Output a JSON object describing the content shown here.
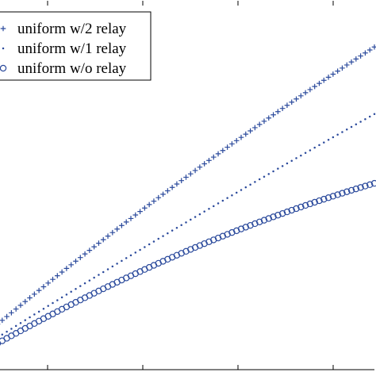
{
  "chart_data": {
    "type": "scatter",
    "title": "",
    "xlabel": "",
    "ylabel": "",
    "grid": false,
    "legend_position": "top-left",
    "marker_color": "#2b4a9c",
    "x": {
      "start": 0,
      "end": 82,
      "step": 1
    },
    "xlim": [
      0,
      82
    ],
    "ylim": [
      0,
      100
    ],
    "series": [
      {
        "name": "uniform w/2 relay",
        "marker": "plus",
        "y_start": 12.3,
        "y_end": 87.1,
        "curvature": 0.06
      },
      {
        "name": "uniform w/1 relay",
        "marker": "dot",
        "y_start": 8.7,
        "y_end": 69.0,
        "curvature": 0.03
      },
      {
        "name": "uniform w/o relay",
        "marker": "circle",
        "y_start": 7.1,
        "y_end": 50.3,
        "curvature": 0.15
      }
    ]
  }
}
